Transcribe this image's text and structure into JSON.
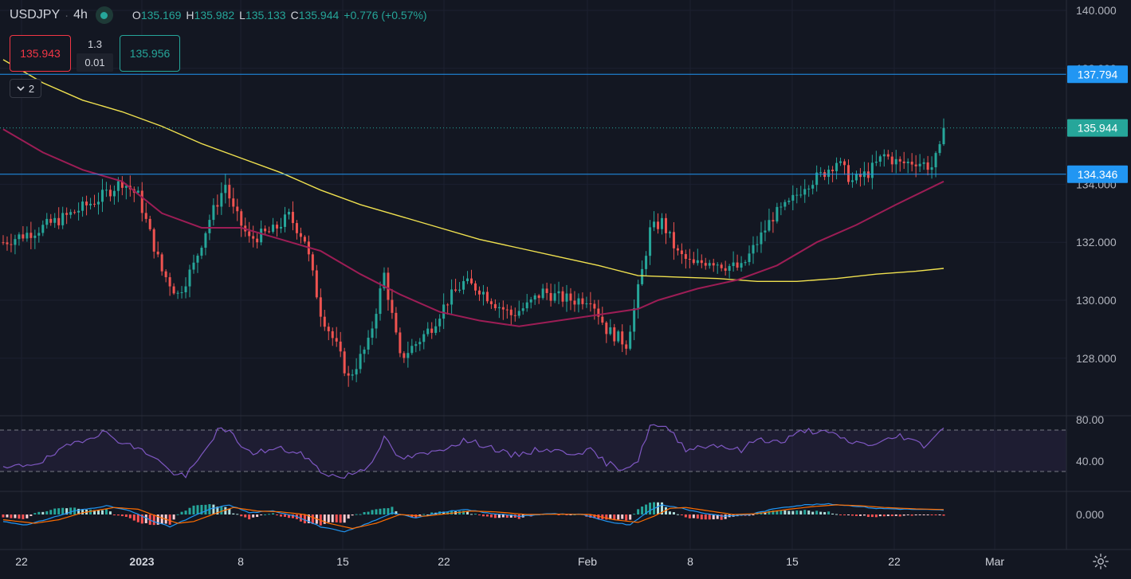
{
  "header": {
    "symbol": "USDJPY",
    "interval": "4h",
    "open_label": "O",
    "open": "135.169",
    "high_label": "H",
    "high": "135.982",
    "low_label": "L",
    "low": "135.133",
    "close_label": "C",
    "close": "135.944",
    "change": "+0.776 (+0.57%)"
  },
  "order_panel": {
    "sell_price": "135.943",
    "spread": "1.3",
    "lot": "0.01",
    "buy_price": "135.956"
  },
  "indicators_toggle": {
    "count": "2"
  },
  "colors": {
    "up": "#26a69a",
    "down": "#ef5350",
    "ma_long": "#f0e14f",
    "ma_short": "#9c1d55",
    "hline": "#2196f3",
    "rsi": "#7e57c2",
    "macd": "#2196f3",
    "signal": "#ff6d00",
    "hist_up_strong": "#26a69a",
    "hist_up_weak": "#b2dfdb",
    "hist_down_strong": "#ff5252",
    "hist_down_weak": "#ffcdd2"
  },
  "chart_data": {
    "type": "candlestick",
    "symbol": "USDJPY",
    "timeframe": "4h",
    "x_ticks": [
      "22",
      "2023",
      "8",
      "15",
      "22",
      "Feb",
      "8",
      "15",
      "22",
      "Mar"
    ],
    "price_axis": {
      "ticks": [
        "140.000",
        "138.000",
        "134.000",
        "132.000",
        "130.000",
        "128.000"
      ],
      "range": [
        126.0,
        140.0
      ]
    },
    "horizontal_lines": [
      {
        "label": "137.794",
        "value": 137.794
      },
      {
        "label": "134.346",
        "value": 134.346
      }
    ],
    "last_price": {
      "label": "135.944",
      "value": 135.944
    },
    "price_path": [
      {
        "i": 0,
        "p": 132.0
      },
      {
        "i": 8,
        "p": 132.4
      },
      {
        "i": 16,
        "p": 132.9
      },
      {
        "i": 24,
        "p": 133.5
      },
      {
        "i": 30,
        "p": 134.1
      },
      {
        "i": 34,
        "p": 133.6
      },
      {
        "i": 40,
        "p": 131.0
      },
      {
        "i": 44,
        "p": 130.2
      },
      {
        "i": 48,
        "p": 131.2
      },
      {
        "i": 52,
        "p": 132.8
      },
      {
        "i": 56,
        "p": 134.0
      },
      {
        "i": 58,
        "p": 133.1
      },
      {
        "i": 62,
        "p": 132.1
      },
      {
        "i": 68,
        "p": 132.4
      },
      {
        "i": 72,
        "p": 132.9
      },
      {
        "i": 76,
        "p": 132.1
      },
      {
        "i": 80,
        "p": 129.6
      },
      {
        "i": 84,
        "p": 128.4
      },
      {
        "i": 87,
        "p": 127.3
      },
      {
        "i": 92,
        "p": 128.5
      },
      {
        "i": 96,
        "p": 130.9
      },
      {
        "i": 100,
        "p": 128.0
      },
      {
        "i": 104,
        "p": 128.5
      },
      {
        "i": 108,
        "p": 129.1
      },
      {
        "i": 112,
        "p": 130.0
      },
      {
        "i": 116,
        "p": 130.6
      },
      {
        "i": 120,
        "p": 130.4
      },
      {
        "i": 124,
        "p": 129.9
      },
      {
        "i": 128,
        "p": 129.5
      },
      {
        "i": 132,
        "p": 129.8
      },
      {
        "i": 136,
        "p": 130.3
      },
      {
        "i": 140,
        "p": 130.1
      },
      {
        "i": 144,
        "p": 130.0
      },
      {
        "i": 148,
        "p": 130.1
      },
      {
        "i": 152,
        "p": 129.0
      },
      {
        "i": 157,
        "p": 128.5
      },
      {
        "i": 159,
        "p": 129.7
      },
      {
        "i": 161,
        "p": 131.0
      },
      {
        "i": 163,
        "p": 132.4
      },
      {
        "i": 166,
        "p": 132.7
      },
      {
        "i": 170,
        "p": 131.6
      },
      {
        "i": 174,
        "p": 131.2
      },
      {
        "i": 178,
        "p": 131.4
      },
      {
        "i": 182,
        "p": 131.2
      },
      {
        "i": 186,
        "p": 131.1
      },
      {
        "i": 190,
        "p": 132.0
      },
      {
        "i": 194,
        "p": 132.9
      },
      {
        "i": 198,
        "p": 133.3
      },
      {
        "i": 202,
        "p": 134.0
      },
      {
        "i": 206,
        "p": 134.3
      },
      {
        "i": 210,
        "p": 134.8
      },
      {
        "i": 214,
        "p": 134.1
      },
      {
        "i": 218,
        "p": 134.4
      },
      {
        "i": 222,
        "p": 135.0
      },
      {
        "i": 226,
        "p": 134.7
      },
      {
        "i": 230,
        "p": 134.8
      },
      {
        "i": 234,
        "p": 134.6
      },
      {
        "i": 236,
        "p": 135.17
      },
      {
        "i": 237,
        "p": 135.944
      }
    ],
    "ma_long": {
      "color": "#f0e14f",
      "points": [
        [
          0,
          138.3
        ],
        [
          10,
          137.5
        ],
        [
          20,
          136.9
        ],
        [
          30,
          136.5
        ],
        [
          40,
          136.0
        ],
        [
          50,
          135.4
        ],
        [
          60,
          134.9
        ],
        [
          70,
          134.4
        ],
        [
          80,
          133.8
        ],
        [
          90,
          133.3
        ],
        [
          100,
          132.9
        ],
        [
          110,
          132.5
        ],
        [
          120,
          132.1
        ],
        [
          130,
          131.8
        ],
        [
          140,
          131.5
        ],
        [
          150,
          131.2
        ],
        [
          160,
          130.85
        ],
        [
          170,
          130.8
        ],
        [
          180,
          130.75
        ],
        [
          190,
          130.65
        ],
        [
          200,
          130.65
        ],
        [
          210,
          130.75
        ],
        [
          220,
          130.9
        ],
        [
          230,
          131.0
        ],
        [
          237,
          131.1
        ]
      ]
    },
    "ma_short": {
      "color": "#9c1d55",
      "points": [
        [
          0,
          135.9
        ],
        [
          10,
          135.1
        ],
        [
          20,
          134.5
        ],
        [
          30,
          134.1
        ],
        [
          40,
          133.0
        ],
        [
          50,
          132.5
        ],
        [
          60,
          132.5
        ],
        [
          70,
          132.1
        ],
        [
          80,
          131.7
        ],
        [
          90,
          130.9
        ],
        [
          100,
          130.2
        ],
        [
          110,
          129.6
        ],
        [
          120,
          129.3
        ],
        [
          130,
          129.1
        ],
        [
          140,
          129.3
        ],
        [
          150,
          129.5
        ],
        [
          160,
          129.7
        ],
        [
          165,
          130.0
        ],
        [
          175,
          130.4
        ],
        [
          185,
          130.7
        ],
        [
          195,
          131.2
        ],
        [
          205,
          132.0
        ],
        [
          215,
          132.6
        ],
        [
          225,
          133.3
        ],
        [
          237,
          134.1
        ]
      ]
    },
    "rsi": {
      "axis_ticks": [
        "80.00",
        "40.00"
      ],
      "band": [
        30,
        70
      ],
      "range": [
        20,
        80
      ],
      "points": [
        [
          0,
          32
        ],
        [
          10,
          40
        ],
        [
          18,
          58
        ],
        [
          25,
          68
        ],
        [
          32,
          55
        ],
        [
          38,
          45
        ],
        [
          42,
          30
        ],
        [
          46,
          25
        ],
        [
          50,
          45
        ],
        [
          54,
          70
        ],
        [
          57,
          68
        ],
        [
          62,
          48
        ],
        [
          70,
          52
        ],
        [
          76,
          45
        ],
        [
          80,
          30
        ],
        [
          85,
          24
        ],
        [
          88,
          28
        ],
        [
          92,
          35
        ],
        [
          96,
          62
        ],
        [
          100,
          42
        ],
        [
          108,
          48
        ],
        [
          116,
          60
        ],
        [
          122,
          55
        ],
        [
          128,
          45
        ],
        [
          136,
          52
        ],
        [
          142,
          48
        ],
        [
          148,
          50
        ],
        [
          152,
          38
        ],
        [
          156,
          33
        ],
        [
          160,
          40
        ],
        [
          163,
          75
        ],
        [
          168,
          70
        ],
        [
          172,
          52
        ],
        [
          180,
          56
        ],
        [
          186,
          50
        ],
        [
          190,
          62
        ],
        [
          196,
          58
        ],
        [
          202,
          70
        ],
        [
          208,
          67
        ],
        [
          214,
          58
        ],
        [
          220,
          56
        ],
        [
          226,
          65
        ],
        [
          232,
          55
        ],
        [
          237,
          72
        ]
      ]
    },
    "macd": {
      "axis_ticks": [
        "0.000"
      ],
      "range": [
        -1.2,
        1.2
      ],
      "macd_points": [
        [
          0,
          -0.4
        ],
        [
          6,
          -0.6
        ],
        [
          12,
          -0.2
        ],
        [
          18,
          0.2
        ],
        [
          26,
          0.5
        ],
        [
          32,
          0.2
        ],
        [
          38,
          -0.4
        ],
        [
          42,
          -0.7
        ],
        [
          46,
          -0.3
        ],
        [
          52,
          0.3
        ],
        [
          57,
          0.55
        ],
        [
          62,
          0.1
        ],
        [
          68,
          0.2
        ],
        [
          74,
          -0.1
        ],
        [
          80,
          -0.7
        ],
        [
          86,
          -1.0
        ],
        [
          92,
          -0.5
        ],
        [
          98,
          0.1
        ],
        [
          104,
          -0.2
        ],
        [
          110,
          0.1
        ],
        [
          116,
          0.3
        ],
        [
          122,
          0.1
        ],
        [
          130,
          -0.1
        ],
        [
          138,
          0.05
        ],
        [
          146,
          0.0
        ],
        [
          152,
          -0.4
        ],
        [
          158,
          -0.6
        ],
        [
          162,
          0.1
        ],
        [
          166,
          0.55
        ],
        [
          170,
          0.4
        ],
        [
          176,
          0.1
        ],
        [
          182,
          -0.1
        ],
        [
          188,
          0.0
        ],
        [
          196,
          0.4
        ],
        [
          202,
          0.55
        ],
        [
          208,
          0.6
        ],
        [
          214,
          0.5
        ],
        [
          220,
          0.35
        ],
        [
          228,
          0.3
        ],
        [
          237,
          0.25
        ]
      ],
      "signal_points": [
        [
          0,
          -0.3
        ],
        [
          8,
          -0.5
        ],
        [
          14,
          -0.3
        ],
        [
          20,
          0.1
        ],
        [
          28,
          0.4
        ],
        [
          34,
          0.3
        ],
        [
          40,
          -0.2
        ],
        [
          44,
          -0.5
        ],
        [
          48,
          -0.4
        ],
        [
          54,
          0.1
        ],
        [
          58,
          0.4
        ],
        [
          64,
          0.2
        ],
        [
          70,
          0.15
        ],
        [
          76,
          0.0
        ],
        [
          82,
          -0.5
        ],
        [
          88,
          -0.8
        ],
        [
          94,
          -0.5
        ],
        [
          100,
          0.0
        ],
        [
          106,
          -0.1
        ],
        [
          112,
          0.05
        ],
        [
          118,
          0.2
        ],
        [
          124,
          0.15
        ],
        [
          132,
          0.0
        ],
        [
          140,
          0.02
        ],
        [
          148,
          0.0
        ],
        [
          154,
          -0.3
        ],
        [
          160,
          -0.45
        ],
        [
          164,
          -0.1
        ],
        [
          168,
          0.35
        ],
        [
          172,
          0.4
        ],
        [
          178,
          0.2
        ],
        [
          184,
          0.0
        ],
        [
          190,
          0.05
        ],
        [
          198,
          0.3
        ],
        [
          204,
          0.45
        ],
        [
          210,
          0.55
        ],
        [
          216,
          0.5
        ],
        [
          222,
          0.4
        ],
        [
          230,
          0.32
        ],
        [
          237,
          0.28
        ]
      ]
    }
  }
}
